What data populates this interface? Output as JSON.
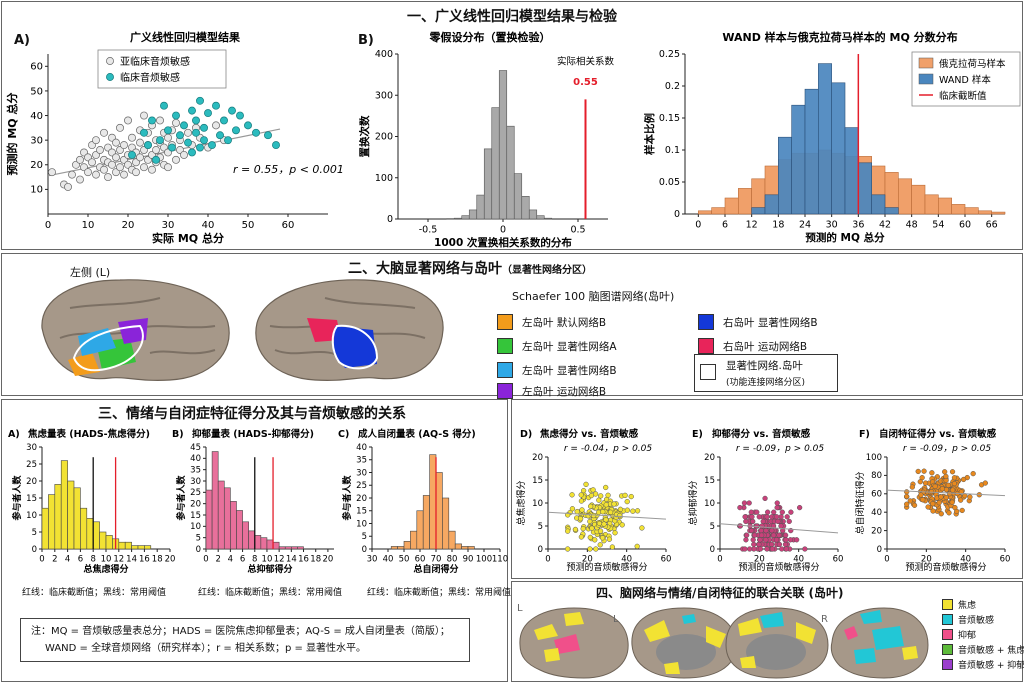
{
  "section1": {
    "title": "一、广义线性回归模型结果与检验",
    "panelA_label": "A)",
    "panelB_label": "B)"
  },
  "section2": {
    "title": "二、大脑显著网络与岛叶",
    "title_sub": "（显著性网络分区）",
    "left_label": "左侧 (L)",
    "legend_title": "Schaefer 100 脑图谱网络(岛叶)",
    "legend": [
      {
        "label": "左岛叶 默认网络B",
        "color": "#F39C1B"
      },
      {
        "label": "左岛叶 显著性网络A",
        "color": "#35C53A"
      },
      {
        "label": "左岛叶 显著性网络B",
        "color": "#2EA8E6"
      },
      {
        "label": "左岛叶 运动网络B",
        "color": "#8A24D9"
      },
      {
        "label": "右岛叶 显著性网络B",
        "color": "#1438D8"
      },
      {
        "label": "右岛叶 运动网络B",
        "color": "#E8245A"
      }
    ],
    "outline_label": "显著性网络.岛叶",
    "outline_sub": "(功能连接网络分区)"
  },
  "section3": {
    "title": "三、情绪与自闭症特征得分及其与音烦敏感的关系",
    "panel_labels": [
      "A)",
      "B)",
      "C)",
      "D)",
      "E)",
      "F)"
    ],
    "hist_titles": [
      "焦虑量表 (HADS-焦虑得分)",
      "抑郁量表 (HADS-抑郁得分)",
      "成人自闭量表 (AQ-S 得分)"
    ],
    "hist_footnote": "红线：临床截断值；黑线：常用阈值",
    "note_lines": [
      "注：MQ = 音烦敏感量表总分；HADS = 医院焦虑抑郁量表；AQ-S = 成人自闭量表（简版）；",
      "WAND = 全球音烦网络（研究样本）；r = 相关系数；p = 显著性水平。"
    ]
  },
  "section4": {
    "title": "四、脑网络与情绪/自闭特征的联合关联 (岛叶)",
    "hemi_labels": [
      "L",
      "L",
      "R",
      "R"
    ],
    "legend": [
      {
        "label": "焦虑",
        "color": "#F2E233"
      },
      {
        "label": "音烦敏感",
        "color": "#22C7D6"
      },
      {
        "label": "抑郁",
        "color": "#F0508A"
      },
      {
        "label": "音烦敏感 + 焦虑",
        "color": "#5DBB3A"
      },
      {
        "label": "音烦敏感 + 抑郁",
        "color": "#9B3FCC"
      }
    ]
  },
  "chart_data": [
    {
      "id": "glm_scatter",
      "type": "scatter",
      "title": "广义线性回归模型结果",
      "xlabel": "实际 MQ 总分",
      "ylabel": "预测的 MQ 总分",
      "xlim": [
        0,
        70
      ],
      "ylim": [
        0,
        65
      ],
      "xticks": [
        0,
        10,
        20,
        30,
        40,
        50,
        60
      ],
      "yticks": [
        10,
        20,
        30,
        40,
        50,
        60
      ],
      "annotation": "r = 0.55，p < 0.001",
      "series": [
        {
          "name": "亚临床音烦敏感",
          "color": "#E8E8E8",
          "x": [
            1,
            4,
            5,
            6,
            7,
            8,
            8,
            9,
            9,
            10,
            10,
            11,
            11,
            12,
            12,
            12,
            13,
            13,
            14,
            14,
            14,
            15,
            15,
            15,
            16,
            16,
            16,
            17,
            17,
            17,
            18,
            18,
            18,
            19,
            19,
            19,
            20,
            20,
            20,
            21,
            21,
            21,
            22,
            22,
            22,
            23,
            23,
            23,
            24,
            24,
            24,
            25,
            25,
            25,
            26,
            26,
            26,
            27,
            27,
            27,
            28,
            28,
            28,
            29,
            29,
            29,
            30,
            30,
            30,
            31,
            31,
            32,
            32,
            33,
            33,
            34,
            35,
            36,
            37,
            38,
            40,
            42,
            44
          ],
          "y": [
            17,
            12,
            11,
            16,
            20,
            14,
            22,
            19,
            25,
            17,
            23,
            21,
            28,
            16,
            24,
            30,
            19,
            26,
            18,
            22,
            33,
            15,
            21,
            27,
            20,
            25,
            31,
            17,
            23,
            29,
            19,
            26,
            35,
            16,
            22,
            28,
            20,
            24,
            38,
            18,
            27,
            31,
            21,
            25,
            17,
            23,
            29,
            34,
            19,
            26,
            40,
            22,
            28,
            33,
            18,
            24,
            36,
            21,
            30,
            26,
            23,
            29,
            38,
            20,
            27,
            33,
            25,
            31,
            19,
            28,
            34,
            22,
            37,
            26,
            30,
            24,
            33,
            28,
            35,
            31,
            27,
            36,
            30
          ]
        },
        {
          "name": "临床音烦敏感",
          "color": "#2BBBBE",
          "x": [
            21,
            24,
            25,
            26,
            27,
            28,
            29,
            30,
            31,
            32,
            33,
            34,
            35,
            36,
            36,
            37,
            37,
            38,
            38,
            39,
            39,
            40,
            41,
            42,
            43,
            44,
            45,
            46,
            47,
            48,
            50,
            52,
            55,
            57
          ],
          "y": [
            24,
            33,
            28,
            38,
            22,
            30,
            44,
            34,
            27,
            40,
            32,
            36,
            29,
            42,
            25,
            33,
            38,
            27,
            46,
            30,
            35,
            41,
            28,
            44,
            32,
            38,
            30,
            42,
            34,
            40,
            36,
            33,
            32,
            28
          ]
        }
      ],
      "fit_line": {
        "x": [
          0,
          58
        ],
        "y": [
          15.5,
          34.5
        ]
      }
    },
    {
      "id": "permutation_hist",
      "type": "bar",
      "title": "零假设分布（置换检验）",
      "xlabel": "1000 次置换相关系数的分布",
      "ylabel": "置换次数",
      "xlim": [
        -0.7,
        0.7
      ],
      "ylim": [
        0,
        400
      ],
      "xticks": [
        -0.5,
        0,
        0.5
      ],
      "yticks": [
        0,
        100,
        200,
        300,
        400
      ],
      "bin_width": 0.05,
      "bin_centers": [
        -0.35,
        -0.3,
        -0.25,
        -0.2,
        -0.15,
        -0.1,
        -0.05,
        0,
        0.05,
        0.1,
        0.15,
        0.2,
        0.25,
        0.3
      ],
      "values": [
        1,
        2,
        8,
        22,
        58,
        170,
        270,
        360,
        225,
        110,
        55,
        22,
        8,
        2
      ],
      "observed": {
        "label": "实际相关系数",
        "value": 0.55,
        "value_label": "0.55"
      }
    },
    {
      "id": "mq_distribution",
      "type": "bar",
      "title": "WAND 样本与俄克拉荷马样本的 MQ 分数分布",
      "xlabel": "预测的 MQ 总分",
      "ylabel": "样本比例",
      "xlim": [
        -3,
        69
      ],
      "ylim": [
        0,
        0.25
      ],
      "xticks": [
        0,
        6,
        12,
        18,
        24,
        30,
        36,
        42,
        48,
        54,
        60,
        66
      ],
      "yticks": [
        0,
        0.05,
        0.1,
        0.15,
        0.2,
        0.25
      ],
      "bin_width": 3,
      "bin_starts": [
        0,
        3,
        6,
        9,
        12,
        15,
        18,
        21,
        24,
        27,
        30,
        33,
        36,
        39,
        42,
        45,
        48,
        51,
        54,
        57,
        60,
        63,
        66
      ],
      "series": [
        {
          "name": "俄克拉荷马样本",
          "color": "#F0A06A",
          "values": [
            0.005,
            0.01,
            0.025,
            0.04,
            0.055,
            0.075,
            0.085,
            0.095,
            0.095,
            0.1,
            0.095,
            0.09,
            0.09,
            0.075,
            0.065,
            0.055,
            0.045,
            0.03,
            0.025,
            0.015,
            0.01,
            0.005,
            0.003
          ]
        },
        {
          "name": "WAND 样本",
          "color": "#4A86BE",
          "values": [
            0,
            0,
            0,
            0,
            0.01,
            0.03,
            0.12,
            0.17,
            0.195,
            0.235,
            0.205,
            0.135,
            0.08,
            0.03,
            0.01,
            0,
            0,
            0,
            0,
            0,
            0,
            0,
            0
          ]
        }
      ],
      "cutoff": {
        "name": "临床截断值",
        "value": 36,
        "color": "#E41E2B"
      }
    },
    {
      "id": "anxiety_hist",
      "type": "bar",
      "title": "焦虑量表 (HADS-焦虑得分)",
      "xlabel": "总焦虑得分",
      "ylabel": "参与者人数",
      "xlim": [
        0,
        20
      ],
      "ylim": [
        0,
        30
      ],
      "xticks": [
        0,
        2,
        4,
        6,
        8,
        10,
        12,
        14,
        16,
        18,
        20
      ],
      "yticks": [
        0,
        5,
        10,
        15,
        20,
        25,
        30
      ],
      "bin_width": 1,
      "color": "#F2E233",
      "values": [
        12,
        16,
        19,
        26,
        20,
        18,
        12,
        9,
        8,
        5,
        4,
        3,
        2,
        2,
        1,
        1,
        1,
        0,
        0,
        0
      ],
      "black_line": 8,
      "red_line": 11.5
    },
    {
      "id": "depression_hist",
      "type": "bar",
      "title": "抑郁量表 (HADS-抑郁得分)",
      "xlabel": "总抑郁得分",
      "ylabel": "参与者人数",
      "xlim": [
        0,
        21
      ],
      "ylim": [
        0,
        45
      ],
      "xticks": [
        0,
        2,
        4,
        6,
        8,
        10,
        12,
        14,
        16,
        18,
        20
      ],
      "yticks": [
        0,
        5,
        10,
        15,
        20,
        25,
        30,
        35,
        40,
        45
      ],
      "bin_width": 1,
      "color": "#E8709B",
      "values": [
        26,
        43,
        30,
        27,
        21,
        17,
        12,
        8,
        6,
        5,
        4,
        3,
        1,
        1,
        1,
        1,
        0,
        0,
        0,
        0,
        0
      ],
      "black_line": 8,
      "red_line": 11
    },
    {
      "id": "aq_hist",
      "type": "bar",
      "title": "成人自闭量表 (AQ-S 得分)",
      "xlabel": "总自闭得分",
      "ylabel": "参与者人数",
      "xlim": [
        30,
        110
      ],
      "ylim": [
        0,
        40
      ],
      "xticks": [
        30,
        40,
        50,
        60,
        70,
        80,
        90,
        100,
        110
      ],
      "yticks": [
        0,
        5,
        10,
        15,
        20,
        25,
        30,
        35,
        40
      ],
      "bin_width": 4,
      "color": "#F6A862",
      "bin_starts": [
        42,
        46,
        50,
        54,
        58,
        62,
        66,
        70,
        74,
        78,
        82,
        86,
        90
      ],
      "values": [
        1,
        1,
        3,
        7,
        15,
        21,
        37,
        30,
        20,
        7,
        2,
        1,
        1
      ],
      "red_line": 70
    },
    {
      "id": "scatter_anx",
      "type": "scatter",
      "title": "焦虑得分 vs. 音烦敏感",
      "annotation": "r = -0.04，p > 0.05",
      "xlabel": "预测的音烦敏感得分",
      "ylabel": "总焦虑得分",
      "xlim": [
        0,
        60
      ],
      "ylim": [
        0,
        20
      ],
      "xticks": [
        0,
        20,
        40,
        60
      ],
      "yticks": [
        0,
        5,
        10,
        15,
        20
      ],
      "color": "#F2E233",
      "fit_line": {
        "x": [
          0,
          60
        ],
        "y": [
          8,
          6.5
        ]
      }
    },
    {
      "id": "scatter_dep",
      "type": "scatter",
      "title": "抑郁得分 vs. 音烦敏感",
      "annotation": "r = -0.09，p > 0.05",
      "xlabel": "预测的音烦敏感得分",
      "ylabel": "总抑郁得分",
      "xlim": [
        0,
        60
      ],
      "ylim": [
        0,
        20
      ],
      "xticks": [
        0,
        20,
        40,
        60
      ],
      "yticks": [
        0,
        5,
        10,
        15,
        20
      ],
      "color": "#C8417A",
      "fit_line": {
        "x": [
          0,
          60
        ],
        "y": [
          5.5,
          3.5
        ]
      }
    },
    {
      "id": "scatter_aq",
      "type": "scatter",
      "title": "自闭特征得分 vs. 音烦敏感",
      "annotation": "r = -0.09，p > 0.05",
      "xlabel": "预测的音烦敏感得分",
      "ylabel": "总自闭特征得分",
      "xlim": [
        0,
        60
      ],
      "ylim": [
        0,
        100
      ],
      "xticks": [
        0,
        20,
        40,
        60
      ],
      "yticks": [
        0,
        20,
        40,
        60,
        80,
        100
      ],
      "color": "#E8891E",
      "fit_line": {
        "x": [
          0,
          60
        ],
        "y": [
          64,
          58
        ]
      }
    }
  ]
}
